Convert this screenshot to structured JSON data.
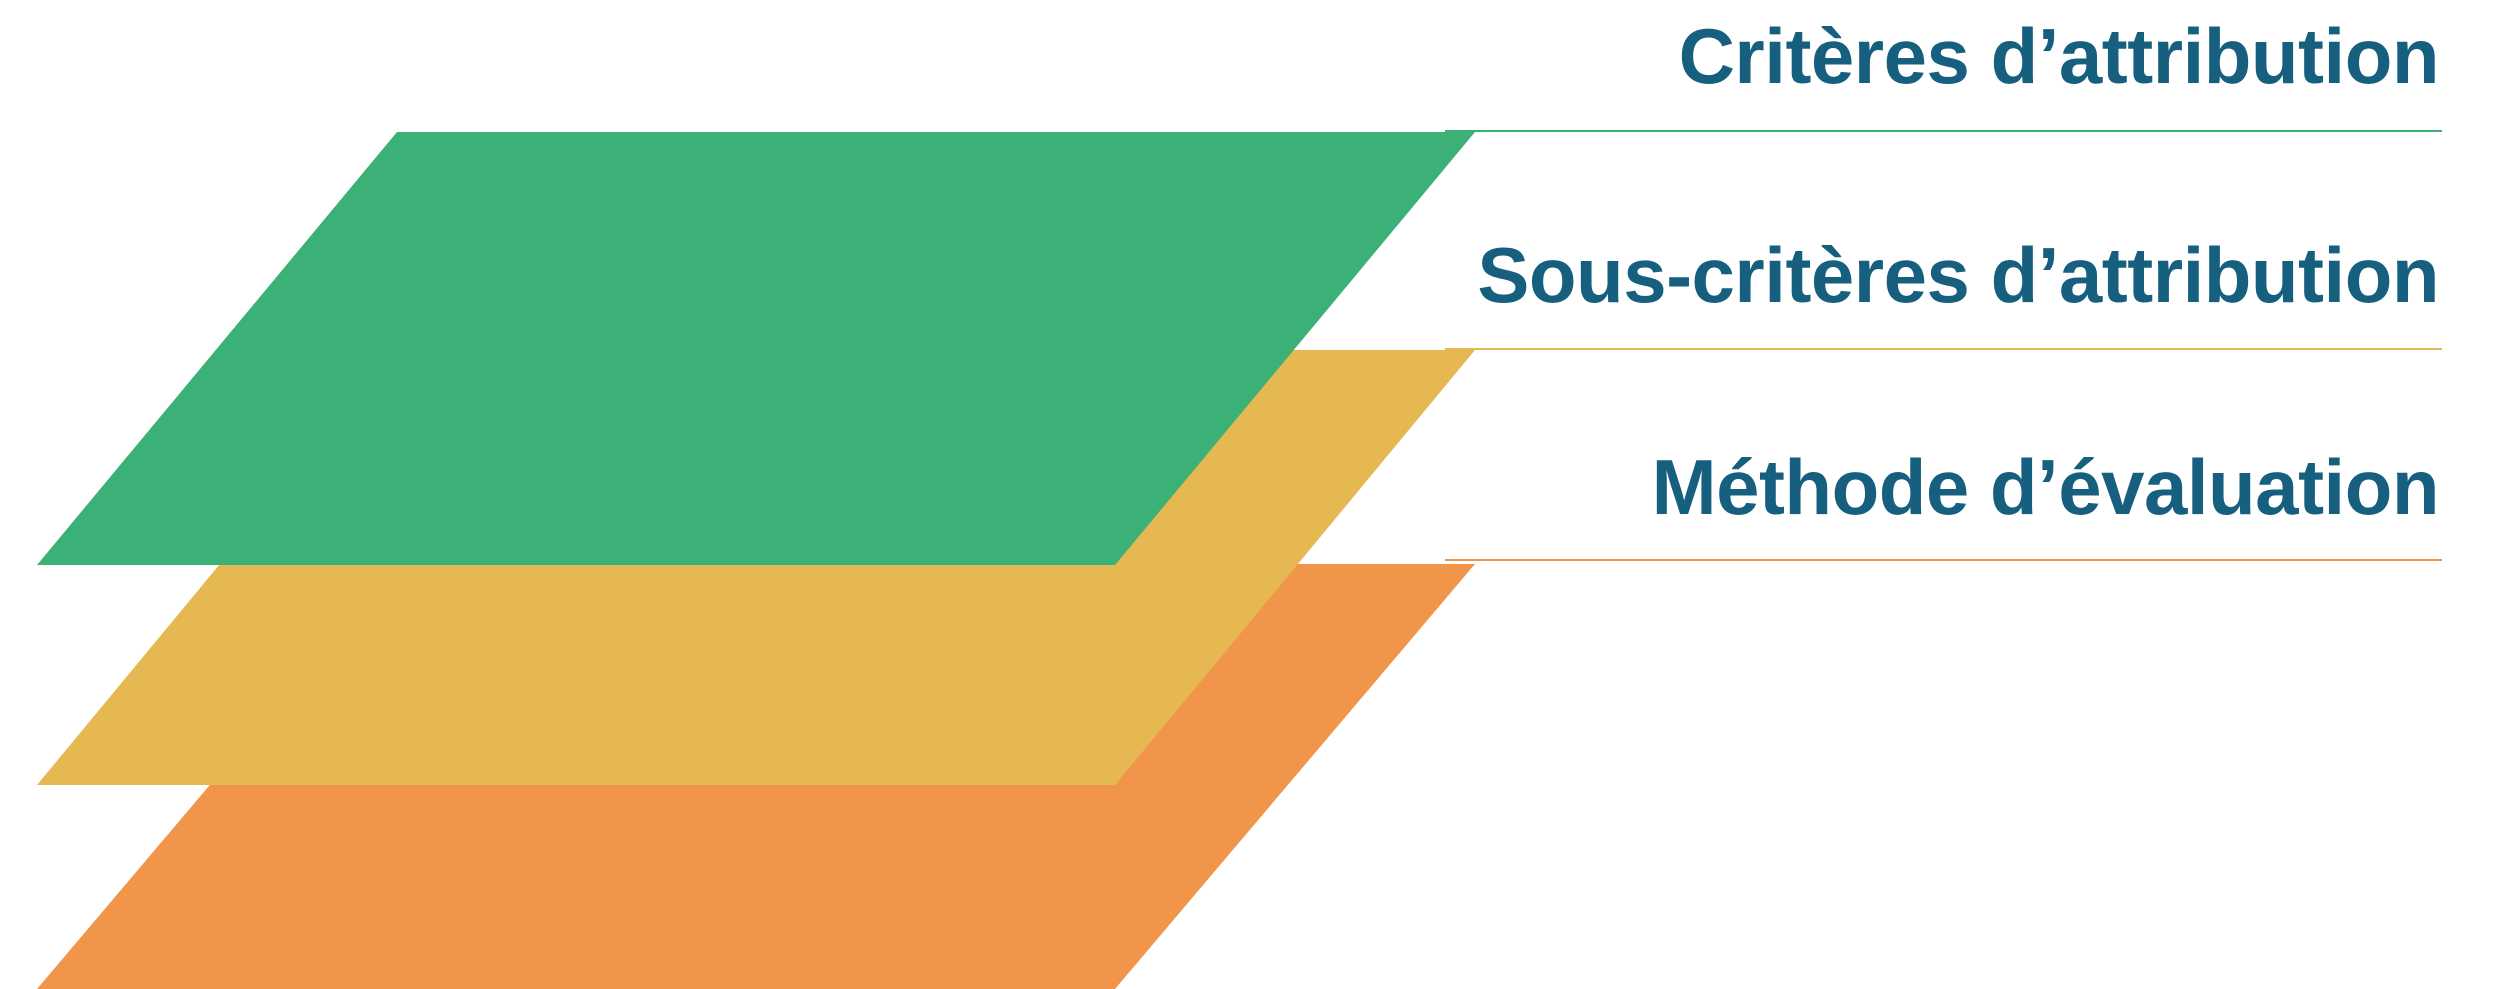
{
  "layers": [
    {
      "label": "Critères d’attribution",
      "color": "#3cb177"
    },
    {
      "label": "Sous-critères d’attribution",
      "color": "#e5b852"
    },
    {
      "label": "Méthode d’évaluation",
      "color": "#f1954b"
    }
  ],
  "text_color": "#175f7e"
}
